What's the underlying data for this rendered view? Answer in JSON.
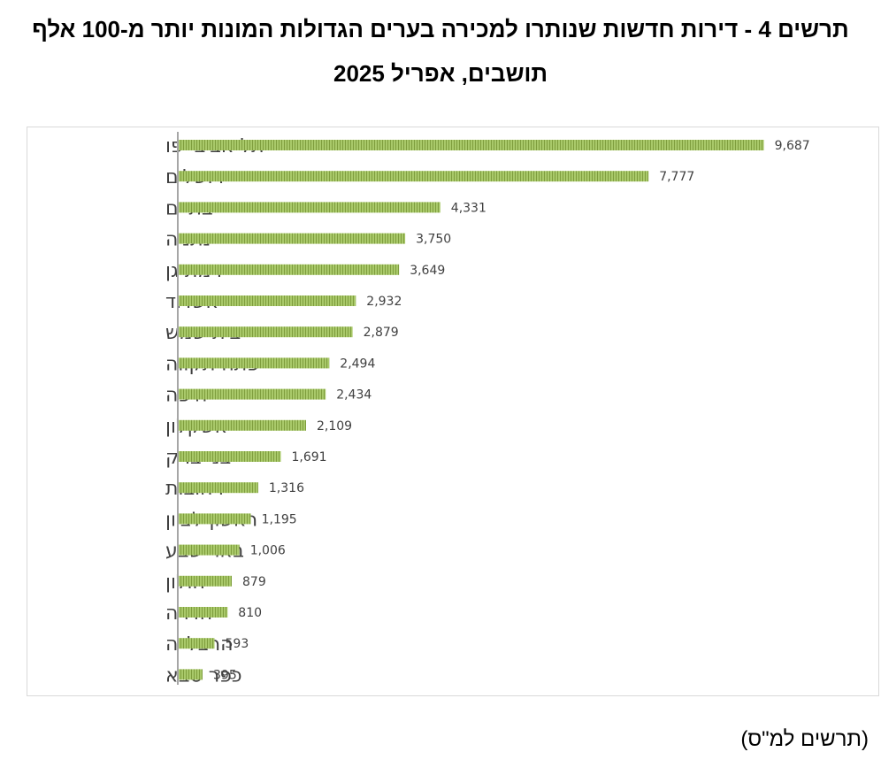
{
  "title": {
    "line1": "תרשים 4 - דירות חדשות שנותרו למכירה בערים הגדולות המונות יותר מ-100 אלף",
    "line2": "תושבים, אפריל 2025"
  },
  "caption": "(תרשים למ\"ס)",
  "colors": {
    "bar": "#a9c96a",
    "bar_stripe": "#7f9e3e",
    "axis": "#a6a6a6",
    "frame": "#d9d9d9"
  },
  "chart_data": {
    "type": "bar",
    "orientation": "horizontal",
    "title": "תרשים 4 - דירות חדשות שנותרו למכירה בערים הגדולות המונות יותר מ-100 אלף תושבים, אפריל 2025",
    "categories": [
      "תל אביב-יפו",
      "ירושלים",
      "בת ים",
      "נתניה",
      "רמת גן",
      "אשדוד",
      "בית שמש",
      "פתח תקווה",
      "חיפה",
      "אשקלון",
      "בני ברק",
      "רחובות",
      "ראשון לציון",
      "באר שבע",
      "חולון",
      "חדרה",
      "הרצלייה",
      "כפר סבא"
    ],
    "values": [
      9687,
      7777,
      4331,
      3750,
      3649,
      2932,
      2879,
      2494,
      2434,
      2109,
      1691,
      1316,
      1195,
      1006,
      879,
      810,
      593,
      395
    ],
    "value_labels": [
      "9,687",
      "7,777",
      "4,331",
      "3,750",
      "3,649",
      "2,932",
      "2,879",
      "2,494",
      "2,434",
      "2,109",
      "1,691",
      "1,316",
      "1,195",
      "1,006",
      "879",
      "810",
      "593",
      "395"
    ],
    "xlim": [
      0,
      10000
    ],
    "grid": false,
    "legend": "none",
    "data_labels": "outside-end"
  }
}
